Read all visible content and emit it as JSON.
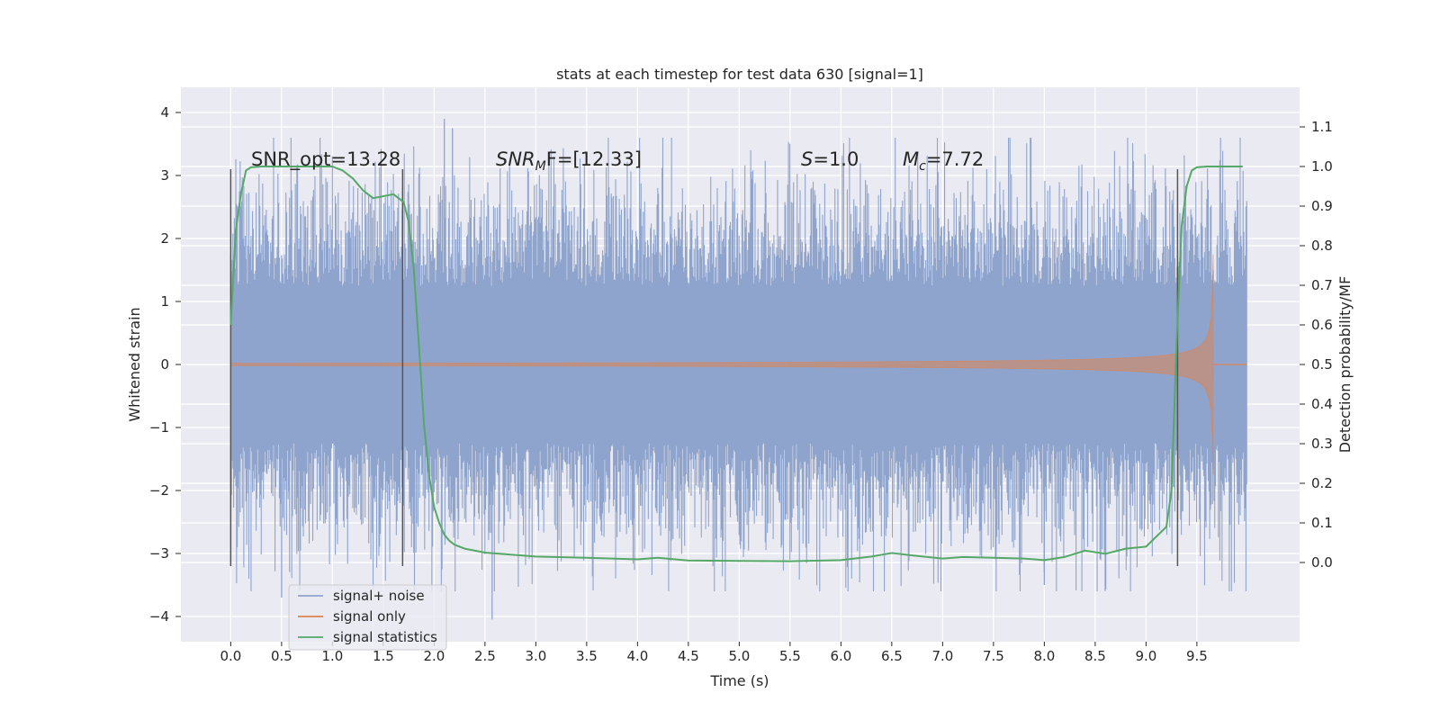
{
  "chart_data": {
    "type": "line",
    "title": "stats at each timestep for test data 630 [signal=1]",
    "xlabel": "Time (s)",
    "ylabel_left": "Whitened strain",
    "ylabel_right": "Detection probability/MF",
    "xlim": [
      -0.49,
      10.51
    ],
    "ylim_left": [
      -4.4,
      4.4
    ],
    "ylim_right": [
      -0.2,
      1.2
    ],
    "xticks": [
      0.0,
      0.5,
      1.0,
      1.5,
      2.0,
      2.5,
      3.0,
      3.5,
      4.0,
      4.5,
      5.0,
      5.5,
      6.0,
      6.5,
      7.0,
      7.5,
      8.0,
      8.5,
      9.0,
      9.5
    ],
    "xtick_labels": [
      "0.0",
      "0.5",
      "1.0",
      "1.5",
      "2.0",
      "2.5",
      "3.0",
      "3.5",
      "4.0",
      "4.5",
      "5.0",
      "5.5",
      "6.0",
      "6.5",
      "7.0",
      "7.5",
      "8.0",
      "8.5",
      "9.0",
      "9.5"
    ],
    "yticks_left": [
      -4,
      -3,
      -2,
      -1,
      0,
      1,
      2,
      3,
      4
    ],
    "ytick_labels_left": [
      "−4",
      "−3",
      "−2",
      "−1",
      "0",
      "1",
      "2",
      "3",
      "4"
    ],
    "yticks_right": [
      0.0,
      0.1,
      0.2,
      0.3,
      0.4,
      0.5,
      0.6,
      0.7,
      0.8,
      0.9,
      1.0,
      1.1
    ],
    "ytick_labels_right": [
      "0.0",
      "0.1",
      "0.2",
      "0.3",
      "0.4",
      "0.5",
      "0.6",
      "0.7",
      "0.8",
      "0.9",
      "1.0",
      "1.1"
    ],
    "grid": true,
    "legend_position": "lower-left",
    "annotations": {
      "snr_opt": "SNR_opt=13.28",
      "snr_mf_prefix": "SNR",
      "snr_mf_sub": "M",
      "snr_mf_suffix": "F=[12.33]",
      "s_prefix": "S",
      "s_suffix": "=1.0",
      "mc_prefix": "M",
      "mc_sub": "c",
      "mc_suffix": "=7.72"
    },
    "vertical_markers": [
      0.0,
      1.69,
      9.31
    ],
    "series": [
      {
        "name": "signal+ noise",
        "axis": "left",
        "color": "#8fa4cc",
        "x_range": [
          0.0,
          9.99
        ],
        "approx_range": [
          -4.05,
          3.9
        ],
        "peaks": [
          {
            "x": 2.1,
            "y": 3.9
          },
          {
            "x": 2.18,
            "y": 3.75
          },
          {
            "x": 0.5,
            "y": -3.7
          },
          {
            "x": 2.57,
            "y": -4.05
          },
          {
            "x": 8.0,
            "y": -3.5
          }
        ]
      },
      {
        "name": "signal only",
        "axis": "left",
        "color": "#dd8452",
        "chirp_end": 9.66,
        "peak_amplitude": 1.75
      },
      {
        "name": "signal statistics",
        "axis": "right",
        "color": "#55a868",
        "x": [
          0.0,
          0.05,
          0.1,
          0.15,
          0.2,
          0.3,
          0.5,
          0.8,
          1.0,
          1.1,
          1.2,
          1.3,
          1.4,
          1.5,
          1.6,
          1.65,
          1.7,
          1.75,
          1.8,
          1.85,
          1.9,
          1.95,
          2.0,
          2.05,
          2.1,
          2.15,
          2.2,
          2.3,
          2.5,
          3.0,
          3.5,
          4.0,
          4.2,
          4.5,
          5.0,
          5.5,
          6.0,
          6.3,
          6.5,
          6.7,
          7.0,
          7.2,
          7.5,
          7.8,
          8.0,
          8.2,
          8.4,
          8.6,
          8.8,
          9.0,
          9.2,
          9.25,
          9.3,
          9.35,
          9.4,
          9.45,
          9.5,
          9.6,
          9.8,
          9.95
        ],
        "y": [
          0.6,
          0.84,
          0.93,
          0.99,
          0.998,
          1.0,
          1.0,
          1.0,
          1.0,
          0.99,
          0.97,
          0.94,
          0.92,
          0.925,
          0.93,
          0.92,
          0.91,
          0.86,
          0.74,
          0.55,
          0.35,
          0.22,
          0.14,
          0.1,
          0.07,
          0.055,
          0.045,
          0.035,
          0.025,
          0.015,
          0.012,
          0.008,
          0.012,
          0.005,
          0.004,
          0.003,
          0.006,
          0.015,
          0.024,
          0.018,
          0.01,
          0.014,
          0.012,
          0.01,
          0.006,
          0.014,
          0.03,
          0.022,
          0.035,
          0.04,
          0.09,
          0.18,
          0.55,
          0.85,
          0.95,
          0.99,
          0.998,
          1.0,
          1.0,
          1.0
        ]
      }
    ]
  }
}
